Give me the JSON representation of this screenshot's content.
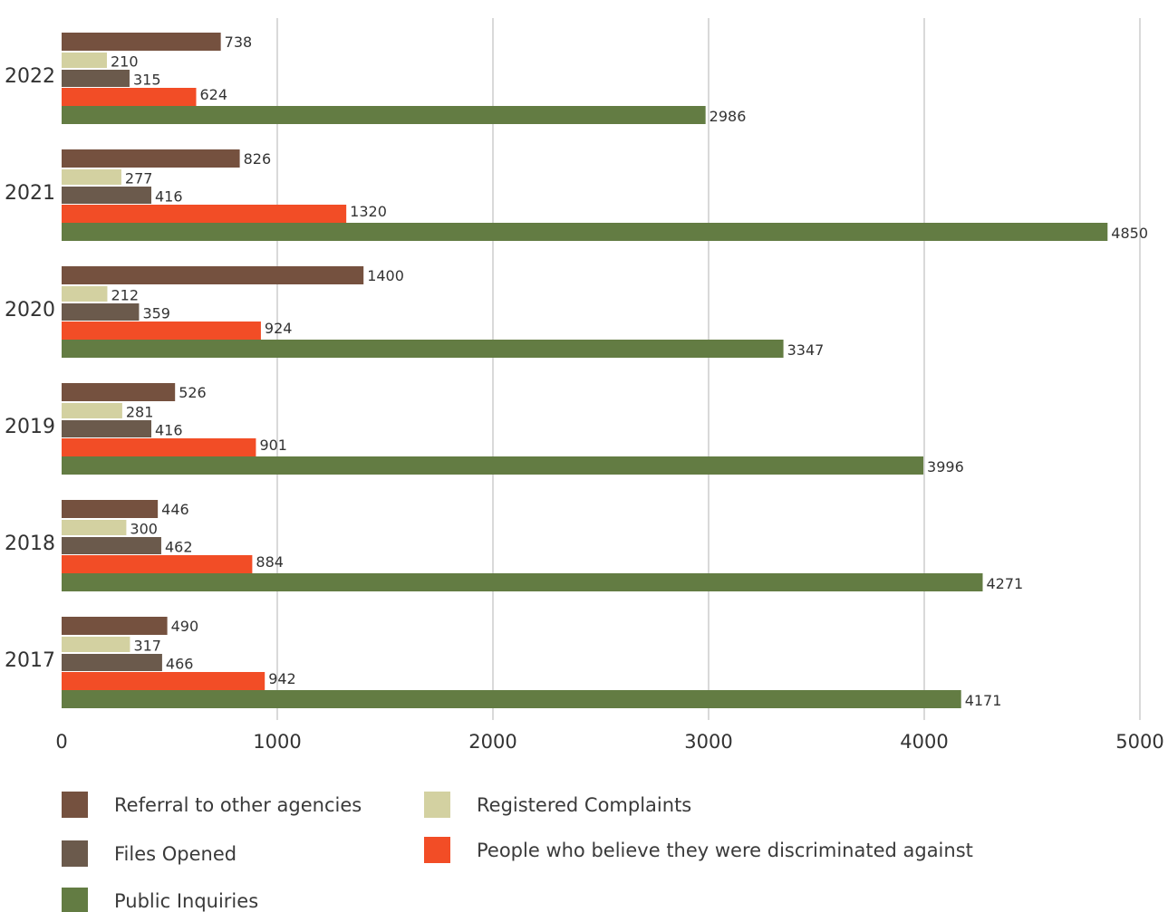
{
  "chart_data": {
    "type": "bar",
    "orientation": "horizontal",
    "categories": [
      "2022",
      "2021",
      "2020",
      "2019",
      "2018",
      "2017"
    ],
    "series": [
      {
        "name": "Referral to other agencies",
        "color": "#75513f",
        "values": [
          738,
          826,
          1400,
          526,
          446,
          490
        ]
      },
      {
        "name": "Registered Complaints",
        "color": "#d3d1a1",
        "values": [
          210,
          277,
          212,
          281,
          300,
          317
        ]
      },
      {
        "name": "Files Opened",
        "color": "#6b5a4c",
        "values": [
          315,
          416,
          359,
          416,
          462,
          466
        ]
      },
      {
        "name": "People who believe they were discriminated against",
        "color": "#f24d26",
        "values": [
          624,
          1320,
          924,
          901,
          884,
          942
        ]
      },
      {
        "name": "Public Inquiries",
        "color": "#637c43",
        "values": [
          2986,
          4850,
          3347,
          3996,
          4271,
          4171
        ]
      }
    ],
    "xlim": [
      0,
      5000
    ],
    "xticks": [
      "0",
      "1000",
      "2000",
      "3000",
      "4000",
      "5000"
    ],
    "grid": "vertical",
    "legend_position": "bottom",
    "title": "",
    "xlabel": "",
    "ylabel": ""
  }
}
